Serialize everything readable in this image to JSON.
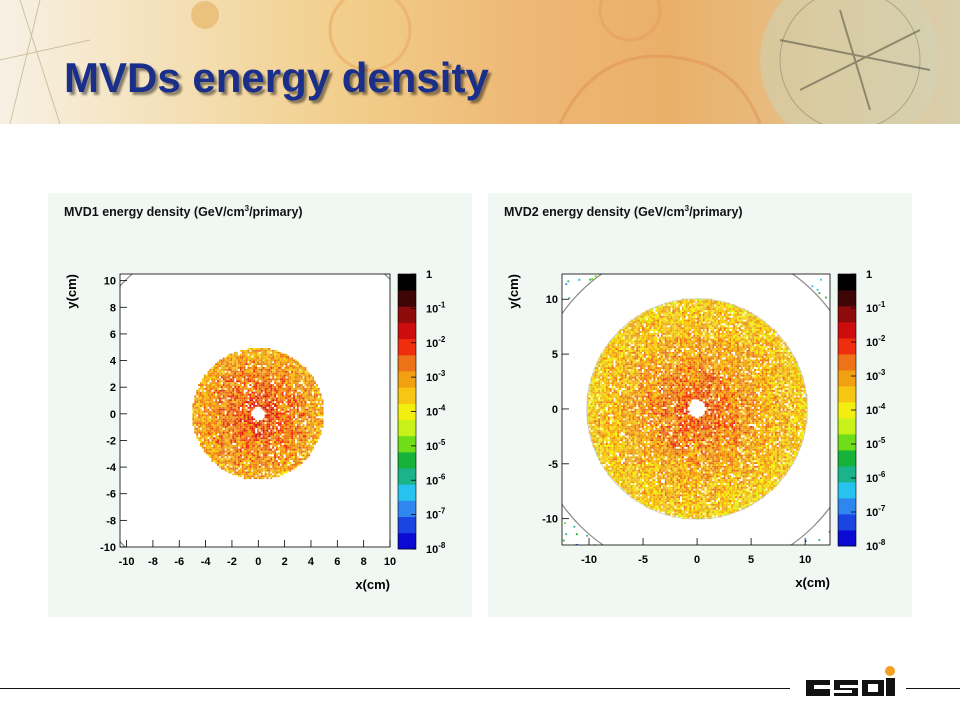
{
  "slide": {
    "title": "MVDs energy density",
    "logo_text": "GSI"
  },
  "colors": {
    "title": "#1a2f8a",
    "panel_background": "#f1f8f4",
    "banner": "#eeb774",
    "colorbar": [
      "#0a0ad2",
      "#1a45e0",
      "#2f86ef",
      "#26c3ee",
      "#1bb38a",
      "#16b23a",
      "#6fdd18",
      "#c6f21a",
      "#f2ef10",
      "#f7c613",
      "#f0a010",
      "#ee7217",
      "#ef2e10",
      "#cd0d0d",
      "#8e0b0b",
      "#3e0606",
      "#000000"
    ]
  },
  "chart_data": [
    {
      "type": "heatmap",
      "title": "MVD1 energy density (GeV/cm",
      "title_sup": "3",
      "title_end": "/primary)",
      "xlabel": "x(cm)",
      "ylabel": "y(cm)",
      "xlim": [
        -10.5,
        10
      ],
      "ylim": [
        -10,
        10.5
      ],
      "xticks": [
        -10,
        -8,
        -6,
        -4,
        -2,
        0,
        2,
        4,
        6,
        8,
        10
      ],
      "yticks": [
        -10,
        -8,
        -6,
        -4,
        -2,
        0,
        2,
        4,
        6,
        8,
        10
      ],
      "xtick_labels": [
        "-10",
        "-8",
        "-6",
        "-4",
        "-2",
        "0",
        "2",
        "4",
        "6",
        "8",
        "10"
      ],
      "ytick_labels": [
        "-10",
        "-8",
        "-6",
        "-4",
        "-2",
        "0",
        "2",
        "4",
        "6",
        "8",
        "10"
      ],
      "z_scale": "log",
      "zlim": [
        1e-08,
        1
      ],
      "colorbar_ticks": [
        {
          "base": "1",
          "exp": ""
        },
        {
          "base": "10",
          "exp": "-1"
        },
        {
          "base": "10",
          "exp": "-2"
        },
        {
          "base": "10",
          "exp": "-3"
        },
        {
          "base": "10",
          "exp": "-4"
        },
        {
          "base": "10",
          "exp": "-5"
        },
        {
          "base": "10",
          "exp": "-6"
        },
        {
          "base": "10",
          "exp": "-7"
        },
        {
          "base": "10",
          "exp": "-8"
        }
      ],
      "sensor_radius_outer": 5,
      "sensor_radius_inner": 0.5,
      "outer_circle_radius": 14.3,
      "peak_log_density": -2.0,
      "edge_log_density": -3.2
    },
    {
      "type": "heatmap",
      "title": "MVD2 energy density (GeV/cm",
      "title_sup": "3",
      "title_end": "/primary)",
      "xlabel": "x(cm)",
      "ylabel": "y(cm)",
      "xlim": [
        -12.5,
        12.3
      ],
      "ylim": [
        -12.4,
        12.3
      ],
      "xticks": [
        -10,
        -5,
        0,
        5,
        10
      ],
      "yticks": [
        -10,
        -5,
        0,
        5,
        10
      ],
      "xtick_labels": [
        "-10",
        "-5",
        "0",
        "5",
        "10"
      ],
      "ytick_labels": [
        "-10",
        "-5",
        "0",
        "5",
        "10"
      ],
      "z_scale": "log",
      "zlim": [
        1e-08,
        1
      ],
      "colorbar_ticks": [
        {
          "base": "1",
          "exp": ""
        },
        {
          "base": "10",
          "exp": "-1"
        },
        {
          "base": "10",
          "exp": "-2"
        },
        {
          "base": "10",
          "exp": "-3"
        },
        {
          "base": "10",
          "exp": "-4"
        },
        {
          "base": "10",
          "exp": "-5"
        },
        {
          "base": "10",
          "exp": "-6"
        },
        {
          "base": "10",
          "exp": "-7"
        },
        {
          "base": "10",
          "exp": "-8"
        }
      ],
      "sensor_radius_outer": 10.2,
      "sensor_radius_inner": 0.8,
      "outer_circle_radius": 15.3,
      "peak_log_density": -2.2,
      "edge_log_density": -3.6
    }
  ]
}
